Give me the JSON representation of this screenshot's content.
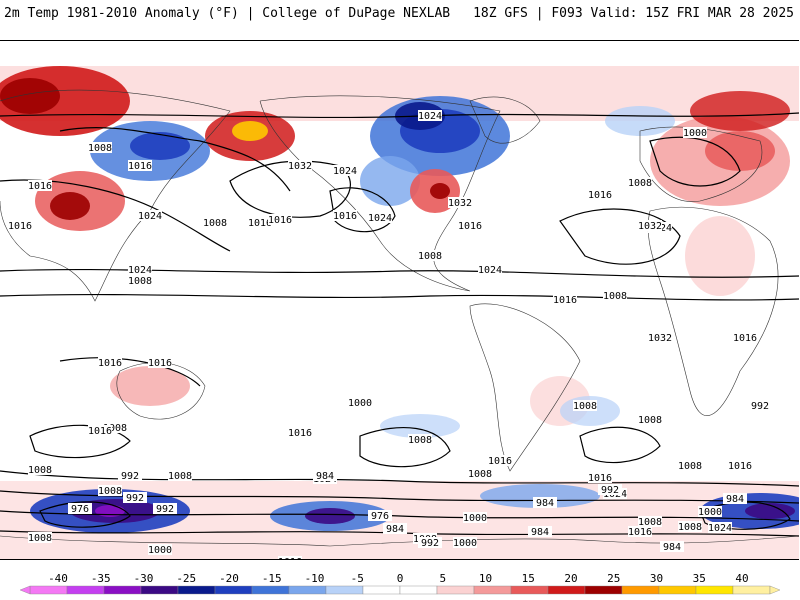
{
  "header": {
    "left": "2m Temp 1981-2010 Anomaly (°F) | College of DuPage NEXLAB",
    "right": "18Z GFS | F093 Valid: 15Z FRI MAR 28 2025"
  },
  "map": {
    "projection": "global cylindrical",
    "variable": "2m temperature anomaly",
    "contours": "sea level pressure (mb)",
    "pressure_labels": [
      "1024",
      "1008",
      "1016",
      "1016",
      "1024",
      "1032",
      "1024",
      "1016",
      "1024",
      "1008",
      "1000",
      "1008",
      "1016",
      "1024",
      "1032",
      "1008",
      "1016",
      "1024",
      "1016",
      "1016",
      "1008",
      "1016",
      "1032",
      "1024",
      "1016",
      "1008",
      "1016",
      "1032",
      "1016",
      "1016",
      "1008",
      "1016",
      "1008",
      "992",
      "1008",
      "1024",
      "1000",
      "1016",
      "1008",
      "1008",
      "1016",
      "1024",
      "1016",
      "1008",
      "1008",
      "1000",
      "1016",
      "1008",
      "992",
      "984",
      "976",
      "1008",
      "992",
      "984",
      "1000",
      "984",
      "1008",
      "992",
      "984",
      "976",
      "992",
      "1000",
      "1008",
      "1016",
      "1024",
      "984",
      "1008",
      "1000",
      "984",
      "992",
      "1008",
      "1016",
      "1024"
    ],
    "anomaly_regions": [
      {
        "area": "Siberia / Central Asia",
        "sign": "warm",
        "value": 30
      },
      {
        "area": "Northern Asia",
        "sign": "cold",
        "value": -25
      },
      {
        "area": "Tibet / Himalaya",
        "sign": "warm",
        "value": 25
      },
      {
        "area": "Alaska",
        "sign": "warm",
        "value": 30
      },
      {
        "area": "Canada / Greenland",
        "sign": "cold",
        "value": -30
      },
      {
        "area": "Central United States",
        "sign": "warm",
        "value": 20
      },
      {
        "area": "Eastern Europe",
        "sign": "warm",
        "value": 20
      },
      {
        "area": "Antarctica (west)",
        "sign": "cold",
        "value": -40
      },
      {
        "area": "Antarctica (east)",
        "sign": "cold",
        "value": -40
      },
      {
        "area": "Southern Ocean rim",
        "sign": "warm",
        "value": 10
      }
    ]
  },
  "colorbar": {
    "ticks": [
      "-40",
      "-35",
      "-30",
      "-25",
      "-20",
      "-15",
      "-10",
      "-5",
      "0",
      "5",
      "10",
      "15",
      "20",
      "25",
      "30",
      "35",
      "40"
    ],
    "colors": [
      "#f478f4",
      "#c43ff0",
      "#8a0fc4",
      "#3b0a84",
      "#0a1a8c",
      "#1f3fbf",
      "#3f74d8",
      "#7aa6ec",
      "#b8d2f8",
      "#ffffff",
      "#ffffff",
      "#fbd2d2",
      "#f49a9a",
      "#e85a5a",
      "#d01a1a",
      "#9c0000",
      "#ff9a00",
      "#ffc800",
      "#ffe600",
      "#fff0a0"
    ]
  }
}
